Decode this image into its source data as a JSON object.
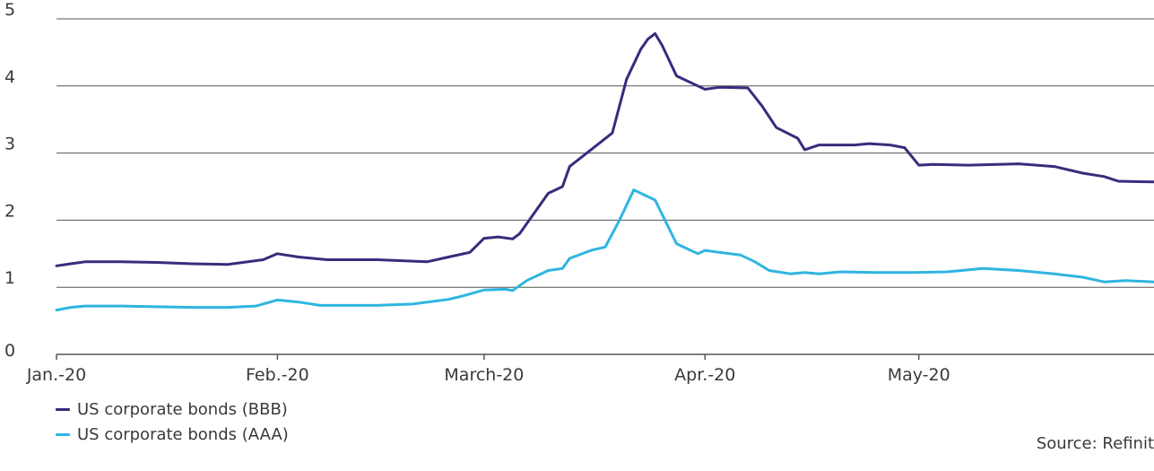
{
  "chart_data": {
    "type": "line",
    "title": "",
    "xlabel": "",
    "ylabel": "",
    "ylim": [
      0,
      5
    ],
    "y_ticks": [
      0,
      1,
      2,
      3,
      4,
      5
    ],
    "grid": "horizontal",
    "x_ticks": [
      {
        "label": "Jan.-20",
        "x": "2020-01-01"
      },
      {
        "label": "Feb.-20",
        "x": "2020-02-01"
      },
      {
        "label": "March-20",
        "x": "2020-03-01"
      },
      {
        "label": "Apr.-20",
        "x": "2020-04-01"
      },
      {
        "label": "May-20",
        "x": "2020-05-01"
      }
    ],
    "x_range": [
      "2020-01-01",
      "2020-06-03"
    ],
    "series": [
      {
        "name": "US corporate bonds (BBB)",
        "color": "#3b2a7c",
        "points": [
          [
            "2020-01-01",
            1.32
          ],
          [
            "2020-01-03",
            1.35
          ],
          [
            "2020-01-05",
            1.38
          ],
          [
            "2020-01-10",
            1.38
          ],
          [
            "2020-01-15",
            1.37
          ],
          [
            "2020-01-20",
            1.35
          ],
          [
            "2020-01-25",
            1.34
          ],
          [
            "2020-01-30",
            1.41
          ],
          [
            "2020-02-01",
            1.5
          ],
          [
            "2020-02-04",
            1.45
          ],
          [
            "2020-02-08",
            1.41
          ],
          [
            "2020-02-15",
            1.41
          ],
          [
            "2020-02-22",
            1.38
          ],
          [
            "2020-02-25",
            1.45
          ],
          [
            "2020-02-28",
            1.52
          ],
          [
            "2020-03-01",
            1.73
          ],
          [
            "2020-03-03",
            1.75
          ],
          [
            "2020-03-05",
            1.72
          ],
          [
            "2020-03-06",
            1.8
          ],
          [
            "2020-03-10",
            2.4
          ],
          [
            "2020-03-12",
            2.5
          ],
          [
            "2020-03-13",
            2.8
          ],
          [
            "2020-03-16",
            3.05
          ],
          [
            "2020-03-19",
            3.3
          ],
          [
            "2020-03-21",
            4.1
          ],
          [
            "2020-03-23",
            4.55
          ],
          [
            "2020-03-24",
            4.7
          ],
          [
            "2020-03-25",
            4.78
          ],
          [
            "2020-03-26",
            4.6
          ],
          [
            "2020-03-28",
            4.15
          ],
          [
            "2020-03-31",
            4.0
          ],
          [
            "2020-04-01",
            3.95
          ],
          [
            "2020-04-03",
            3.98
          ],
          [
            "2020-04-07",
            3.97
          ],
          [
            "2020-04-09",
            3.7
          ],
          [
            "2020-04-11",
            3.38
          ],
          [
            "2020-04-14",
            3.22
          ],
          [
            "2020-04-15",
            3.05
          ],
          [
            "2020-04-17",
            3.12
          ],
          [
            "2020-04-22",
            3.12
          ],
          [
            "2020-04-24",
            3.14
          ],
          [
            "2020-04-27",
            3.12
          ],
          [
            "2020-04-29",
            3.08
          ],
          [
            "2020-05-01",
            2.82
          ],
          [
            "2020-05-03",
            2.83
          ],
          [
            "2020-05-08",
            2.82
          ],
          [
            "2020-05-15",
            2.84
          ],
          [
            "2020-05-20",
            2.8
          ],
          [
            "2020-05-24",
            2.7
          ],
          [
            "2020-05-27",
            2.65
          ],
          [
            "2020-05-29",
            2.58
          ],
          [
            "2020-06-03",
            2.57
          ]
        ]
      },
      {
        "name": "US corporate bonds (AAA)",
        "color": "#2fb5e0",
        "points": [
          [
            "2020-01-01",
            0.66
          ],
          [
            "2020-01-03",
            0.7
          ],
          [
            "2020-01-05",
            0.72
          ],
          [
            "2020-01-10",
            0.72
          ],
          [
            "2020-01-15",
            0.71
          ],
          [
            "2020-01-20",
            0.7
          ],
          [
            "2020-01-25",
            0.7
          ],
          [
            "2020-01-29",
            0.72
          ],
          [
            "2020-02-01",
            0.81
          ],
          [
            "2020-02-04",
            0.78
          ],
          [
            "2020-02-07",
            0.73
          ],
          [
            "2020-02-15",
            0.73
          ],
          [
            "2020-02-20",
            0.75
          ],
          [
            "2020-02-25",
            0.82
          ],
          [
            "2020-02-27",
            0.87
          ],
          [
            "2020-03-01",
            0.96
          ],
          [
            "2020-03-04",
            0.97
          ],
          [
            "2020-03-05",
            0.95
          ],
          [
            "2020-03-07",
            1.1
          ],
          [
            "2020-03-10",
            1.25
          ],
          [
            "2020-03-12",
            1.28
          ],
          [
            "2020-03-13",
            1.43
          ],
          [
            "2020-03-16",
            1.55
          ],
          [
            "2020-03-18",
            1.6
          ],
          [
            "2020-03-20",
            2.0
          ],
          [
            "2020-03-22",
            2.45
          ],
          [
            "2020-03-25",
            2.3
          ],
          [
            "2020-03-28",
            1.65
          ],
          [
            "2020-03-31",
            1.5
          ],
          [
            "2020-04-01",
            1.55
          ],
          [
            "2020-04-03",
            1.52
          ],
          [
            "2020-04-06",
            1.48
          ],
          [
            "2020-04-08",
            1.38
          ],
          [
            "2020-04-10",
            1.25
          ],
          [
            "2020-04-13",
            1.2
          ],
          [
            "2020-04-15",
            1.22
          ],
          [
            "2020-04-17",
            1.2
          ],
          [
            "2020-04-20",
            1.23
          ],
          [
            "2020-04-25",
            1.22
          ],
          [
            "2020-04-30",
            1.22
          ],
          [
            "2020-05-05",
            1.23
          ],
          [
            "2020-05-10",
            1.28
          ],
          [
            "2020-05-15",
            1.25
          ],
          [
            "2020-05-20",
            1.2
          ],
          [
            "2020-05-24",
            1.15
          ],
          [
            "2020-05-27",
            1.08
          ],
          [
            "2020-05-30",
            1.1
          ],
          [
            "2020-06-03",
            1.08
          ]
        ]
      }
    ],
    "legend": "bottom-left",
    "source": "Source: Refinit"
  }
}
